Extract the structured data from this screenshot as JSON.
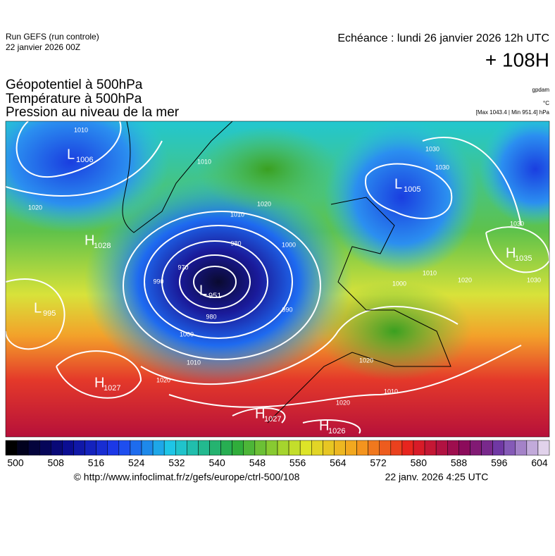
{
  "header": {
    "run": "Run GEFS (run controle)",
    "run_date": "22 janvier 2026 00Z",
    "echeance": "Echéance : lundi 26 janvier 2026 12h UTC",
    "lead": "+ 108H"
  },
  "fields": [
    "Géopotentiel à 500hPa",
    "Température à 500hPa",
    "Pression au niveau de la mer"
  ],
  "units": {
    "geopotential": "gpdam",
    "temperature": "°C",
    "pressure_range": "[Max 1043.4 | Min 951.4] hPa"
  },
  "centers": [
    {
      "type": "L",
      "value": 1006
    },
    {
      "type": "H",
      "value": 1028
    },
    {
      "type": "L",
      "value": 995
    },
    {
      "type": "H",
      "value": 1027
    },
    {
      "type": "L",
      "value": 951
    },
    {
      "type": "L",
      "value": 1005
    },
    {
      "type": "H",
      "value": 1035
    },
    {
      "type": "H",
      "value": 1027
    },
    {
      "type": "H",
      "value": 1026
    }
  ],
  "isobar_labels": [
    1010,
    1010,
    1020,
    1020,
    1010,
    1000,
    980,
    990,
    970,
    980,
    990,
    1000,
    1010,
    1020,
    1030,
    1030,
    1020,
    1030,
    1000,
    1010,
    1020,
    1020,
    1010,
    1030
  ],
  "colorbar": {
    "ticks": [
      500,
      508,
      516,
      524,
      532,
      540,
      548,
      556,
      564,
      572,
      580,
      588,
      596,
      604
    ]
  },
  "footer": {
    "source": "© http://www.infoclimat.fr/z/gefs/europe/ctrl-500/108",
    "date": "22 janv. 2026  4:25 UTC"
  }
}
